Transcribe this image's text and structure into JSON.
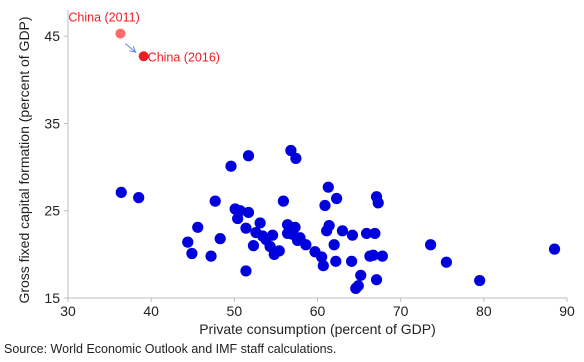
{
  "chart_data": {
    "type": "scatter",
    "title": "",
    "xlabel": "Private consumption (percent of GDP)",
    "ylabel": "Gross fixed capital formation (percent of GDP)",
    "xlim": [
      30,
      90
    ],
    "ylim": [
      15,
      48
    ],
    "x_ticks": [
      30,
      40,
      50,
      60,
      70,
      80,
      90
    ],
    "y_ticks": [
      15,
      25,
      35,
      45
    ],
    "grid": false,
    "legend": "none",
    "series": [
      {
        "color": "#0000dd",
        "points": [
          [
            36.4,
            27.1
          ],
          [
            38.5,
            26.5
          ],
          [
            44.4,
            21.4
          ],
          [
            44.9,
            20.1
          ],
          [
            45.6,
            23.1
          ],
          [
            47.2,
            19.8
          ],
          [
            47.7,
            26.1
          ],
          [
            48.3,
            21.8
          ],
          [
            49.6,
            30.1
          ],
          [
            50.1,
            25.2
          ],
          [
            50.4,
            24.1
          ],
          [
            50.7,
            25.0
          ],
          [
            51.4,
            23.0
          ],
          [
            51.4,
            18.1
          ],
          [
            51.7,
            24.8
          ],
          [
            51.7,
            31.3
          ],
          [
            52.3,
            21.0
          ],
          [
            52.6,
            22.5
          ],
          [
            53.1,
            23.6
          ],
          [
            53.4,
            22.1
          ],
          [
            53.8,
            21.7
          ],
          [
            54.3,
            20.9
          ],
          [
            54.6,
            22.2
          ],
          [
            54.8,
            20.0
          ],
          [
            55.4,
            20.4
          ],
          [
            55.9,
            26.1
          ],
          [
            56.4,
            23.4
          ],
          [
            56.4,
            22.4
          ],
          [
            56.8,
            31.9
          ],
          [
            57.0,
            22.3
          ],
          [
            57.3,
            23.1
          ],
          [
            57.4,
            31.0
          ],
          [
            57.6,
            21.6
          ],
          [
            57.9,
            21.9
          ],
          [
            58.6,
            21.1
          ],
          [
            59.7,
            20.3
          ],
          [
            60.5,
            19.7
          ],
          [
            60.7,
            18.7
          ],
          [
            60.9,
            25.6
          ],
          [
            61.1,
            22.7
          ],
          [
            61.3,
            27.7
          ],
          [
            61.4,
            23.3
          ],
          [
            62.0,
            21.1
          ],
          [
            62.2,
            19.2
          ],
          [
            62.3,
            26.4
          ],
          [
            63.0,
            22.7
          ],
          [
            64.1,
            19.2
          ],
          [
            64.2,
            22.2
          ],
          [
            64.6,
            16.1
          ],
          [
            64.9,
            16.4
          ],
          [
            65.2,
            17.6
          ],
          [
            65.9,
            22.4
          ],
          [
            66.3,
            19.8
          ],
          [
            66.7,
            19.9
          ],
          [
            66.9,
            22.4
          ],
          [
            67.1,
            17.1
          ],
          [
            67.1,
            26.6
          ],
          [
            67.3,
            25.9
          ],
          [
            67.8,
            19.8
          ],
          [
            73.6,
            21.1
          ],
          [
            75.5,
            19.1
          ],
          [
            79.5,
            17.0
          ],
          [
            88.5,
            20.6
          ]
        ]
      }
    ],
    "highlights": [
      {
        "label": "China (2011)",
        "x": 36.3,
        "y": 45.3,
        "color": "#ff6a6a",
        "text_color": "#ee1c25"
      },
      {
        "label": "China (2016)",
        "x": 39.1,
        "y": 42.7,
        "color": "#ee1c25",
        "text_color": "#ee1c25"
      }
    ],
    "arrow": {
      "from": "China (2011)",
      "to": "China (2016)",
      "color": "#5b8ed6"
    }
  },
  "source_note": "Source: World Economic Outlook and IMF staff  calculations."
}
